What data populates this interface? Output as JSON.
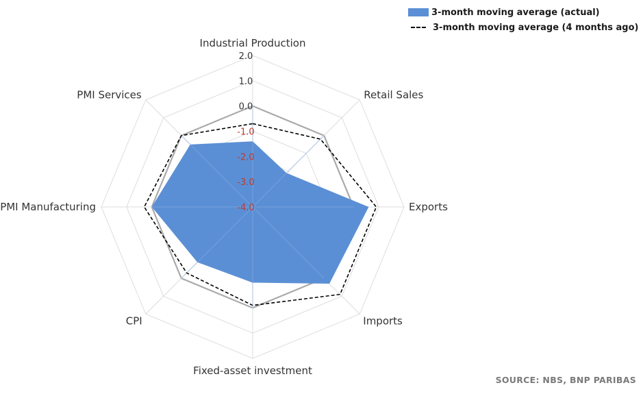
{
  "chart_data": {
    "type": "radar",
    "axes": [
      "Industrial Production",
      "Retail Sales",
      "Exports",
      "Imports",
      "Fixed-asset investment",
      "CPI",
      "PMI Manufacturing",
      "PMI Services"
    ],
    "rmin": -4.0,
    "rmax": 2.0,
    "ticks": [
      "2.0",
      "1.0",
      "0.0",
      "-1.0",
      "-2.0",
      "-3.0",
      "-4.0"
    ],
    "tick_values": [
      2.0,
      1.0,
      0.0,
      -1.0,
      -2.0,
      -3.0,
      -4.0
    ],
    "series": [
      {
        "name": "3-month moving average (actual)",
        "style": "filled",
        "color": "#5b8fd5",
        "values": [
          -1.4,
          -2.1,
          0.6,
          0.3,
          -1.0,
          -0.9,
          0.0,
          -0.5
        ]
      },
      {
        "name": "3-month moving average (4 months ago)",
        "style": "dashed",
        "color": "#000000",
        "values": [
          -0.7,
          -0.2,
          0.9,
          0.9,
          -0.1,
          -0.3,
          0.3,
          0.0
        ]
      }
    ],
    "reference_ring": 0.0,
    "grid": true,
    "legend_position": "top-right"
  },
  "colors": {
    "fill": "#5b8fd5",
    "ring": "#aaaaaa",
    "grid": "#dddddd",
    "negative_tick": "#c0392b",
    "positive_tick": "#333333"
  },
  "source": "SOURCE: NBS, BNP PARIBAS"
}
